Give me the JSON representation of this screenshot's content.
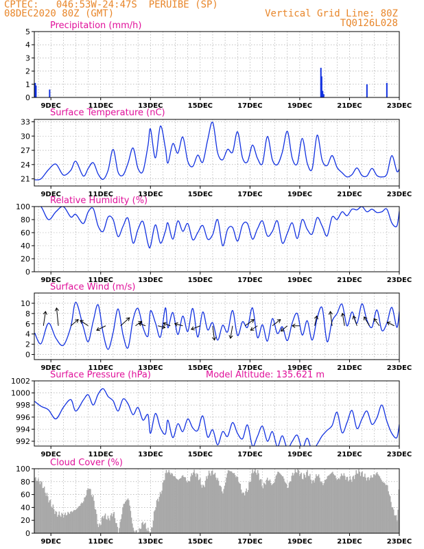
{
  "header": {
    "line1_left": "CPTEC:   046:53W-24:47S  PERUIBE (SP)",
    "line2_left": "08DEC2020 80Z (GMT)",
    "line2_right": "Vertical Grid Line: 80Z",
    "line3_right": "TQ0126L028"
  },
  "colors": {
    "header": "#e8862a",
    "title": "#e0109a",
    "series": "#1030e0",
    "cloud": "#a8a8a8"
  },
  "x_axis": {
    "ticks": [
      "9DEC",
      "11DEC",
      "13DEC",
      "15DEC",
      "17DEC",
      "19DEC",
      "21DEC",
      "23DEC"
    ],
    "range_days": [
      8.333,
      23.0
    ]
  },
  "chart_data": [
    {
      "type": "bar",
      "title": "Precipitation (mm/h)",
      "ylim": [
        0,
        5
      ],
      "yticks": [
        "0",
        "1",
        "2",
        "3",
        "4",
        "5"
      ],
      "x": [
        8.37,
        8.4,
        8.95,
        19.85,
        19.88,
        19.92,
        19.96,
        21.7,
        22.5
      ],
      "values": [
        1.1,
        0.9,
        0.6,
        2.25,
        1.6,
        0.5,
        0.25,
        1.0,
        1.1
      ]
    },
    {
      "type": "line",
      "title": "Surface Temperature (nC)",
      "ylim": [
        19.5,
        33.5
      ],
      "yticks": [
        "21",
        "24",
        "27",
        "30",
        "33"
      ],
      "x": [
        8.35,
        8.6,
        8.9,
        9.2,
        9.5,
        9.8,
        10.0,
        10.3,
        10.5,
        10.7,
        10.9,
        11.1,
        11.3,
        11.5,
        11.7,
        11.9,
        12.1,
        12.3,
        12.5,
        12.7,
        12.9,
        13.0,
        13.2,
        13.4,
        13.6,
        13.7,
        13.9,
        14.1,
        14.3,
        14.5,
        14.7,
        14.9,
        15.1,
        15.3,
        15.5,
        15.7,
        15.9,
        16.1,
        16.3,
        16.5,
        16.7,
        16.9,
        17.1,
        17.3,
        17.5,
        17.7,
        17.9,
        18.1,
        18.3,
        18.5,
        18.7,
        18.9,
        19.1,
        19.3,
        19.5,
        19.7,
        19.9,
        20.1,
        20.3,
        20.5,
        20.7,
        20.9,
        21.1,
        21.3,
        21.5,
        21.7,
        21.9,
        22.1,
        22.3,
        22.5,
        22.7,
        22.9,
        23.0
      ],
      "values": [
        20.8,
        21.0,
        22.9,
        24.1,
        21.8,
        22.8,
        24.7,
        21.6,
        23.2,
        24.4,
        22.0,
        20.9,
        22.8,
        27.2,
        22.4,
        21.8,
        24.3,
        27.5,
        23.2,
        22.6,
        28.0,
        31.5,
        25.4,
        32.1,
        27.5,
        24.3,
        28.4,
        26.4,
        29.8,
        24.7,
        23.6,
        26.0,
        24.5,
        29.2,
        32.9,
        26.5,
        25.0,
        27.2,
        26.6,
        30.9,
        25.4,
        24.6,
        28.1,
        25.3,
        24.2,
        29.9,
        25.0,
        24.0,
        26.6,
        31.0,
        25.3,
        24.2,
        29.5,
        24.3,
        23.1,
        30.2,
        24.9,
        23.8,
        25.9,
        23.4,
        22.3,
        21.4,
        21.9,
        23.3,
        21.7,
        21.6,
        23.2,
        21.7,
        21.4,
        22.0,
        25.9,
        22.6,
        23.1
      ]
    },
    {
      "type": "line",
      "title": "Relative Humidity (%)",
      "ylim": [
        0,
        100
      ],
      "yticks": [
        "0",
        "20",
        "40",
        "60",
        "80",
        "100"
      ],
      "x": [
        8.35,
        8.6,
        8.9,
        9.2,
        9.5,
        9.8,
        10.0,
        10.3,
        10.5,
        10.7,
        10.9,
        11.1,
        11.3,
        11.5,
        11.7,
        11.9,
        12.1,
        12.3,
        12.5,
        12.7,
        12.9,
        13.0,
        13.2,
        13.4,
        13.6,
        13.7,
        13.9,
        14.1,
        14.3,
        14.5,
        14.7,
        14.9,
        15.1,
        15.3,
        15.5,
        15.7,
        15.9,
        16.1,
        16.3,
        16.5,
        16.7,
        16.9,
        17.1,
        17.3,
        17.5,
        17.7,
        17.9,
        18.1,
        18.3,
        18.5,
        18.7,
        18.9,
        19.1,
        19.3,
        19.5,
        19.7,
        19.9,
        20.1,
        20.3,
        20.5,
        20.7,
        20.9,
        21.1,
        21.3,
        21.5,
        21.7,
        21.9,
        22.1,
        22.3,
        22.5,
        22.7,
        22.9,
        23.0
      ],
      "values": [
        100,
        100,
        80,
        92,
        100,
        84,
        88,
        74,
        92,
        97,
        70,
        62,
        84,
        80,
        54,
        70,
        82,
        44,
        65,
        77,
        43,
        39,
        72,
        44,
        62,
        75,
        50,
        78,
        62,
        74,
        49,
        60,
        71,
        50,
        57,
        80,
        40,
        65,
        68,
        47,
        72,
        74,
        50,
        66,
        78,
        55,
        62,
        78,
        44,
        59,
        75,
        51,
        80,
        65,
        58,
        83,
        70,
        55,
        84,
        80,
        92,
        86,
        96,
        95,
        100,
        92,
        96,
        91,
        92,
        96,
        75,
        70,
        93
      ]
    },
    {
      "type": "line",
      "title": "Surface Wind (m/s)",
      "ylim": [
        -1,
        12
      ],
      "yticks": [
        "0",
        "2",
        "4",
        "6",
        "8",
        "10"
      ],
      "x": [
        8.35,
        8.6,
        8.9,
        9.2,
        9.5,
        9.8,
        10.0,
        10.3,
        10.5,
        10.7,
        10.9,
        11.1,
        11.3,
        11.5,
        11.7,
        11.9,
        12.1,
        12.3,
        12.5,
        12.7,
        12.9,
        13.0,
        13.2,
        13.4,
        13.6,
        13.7,
        13.9,
        14.1,
        14.3,
        14.5,
        14.7,
        14.9,
        15.1,
        15.3,
        15.5,
        15.7,
        15.9,
        16.1,
        16.3,
        16.5,
        16.7,
        16.9,
        17.1,
        17.3,
        17.5,
        17.7,
        17.9,
        18.1,
        18.3,
        18.5,
        18.7,
        18.9,
        19.1,
        19.3,
        19.5,
        19.7,
        19.9,
        20.1,
        20.3,
        20.5,
        20.7,
        20.9,
        21.1,
        21.3,
        21.5,
        21.7,
        21.9,
        22.1,
        22.3,
        22.5,
        22.7,
        22.9,
        23.0
      ],
      "values": [
        4.2,
        2.1,
        6.1,
        3.2,
        1.8,
        5.4,
        10.2,
        5.4,
        2.5,
        6.5,
        9.7,
        4.1,
        1.0,
        4.3,
        8.9,
        3.8,
        1.3,
        6.8,
        9.0,
        5.3,
        3.6,
        8.5,
        6.2,
        3.4,
        9.1,
        5.2,
        8.2,
        3.9,
        7.5,
        4.5,
        9.0,
        3.4,
        8.3,
        4.8,
        6.2,
        2.8,
        5.7,
        4.4,
        8.6,
        3.7,
        6.4,
        5.3,
        9.1,
        3.3,
        5.8,
        2.6,
        7.0,
        4.1,
        5.4,
        2.7,
        6.2,
        8.0,
        3.8,
        6.6,
        2.8,
        7.1,
        9.1,
        2.5,
        6.5,
        8.0,
        9.8,
        5.6,
        8.3,
        6.1,
        9.9,
        6.7,
        5.3,
        8.7,
        4.7,
        6.1,
        9.2,
        5.3,
        8.4
      ],
      "vectors": [
        {
          "x": 8.7,
          "dx": 0.12,
          "dy": 0.8
        },
        {
          "x": 9.3,
          "dx": -0.1,
          "dy": 1.0
        },
        {
          "x": 9.8,
          "dx": 0.42,
          "dy": 0.35
        },
        {
          "x": 10.5,
          "dx": -0.45,
          "dy": 0.3
        },
        {
          "x": 11.2,
          "dx": -0.5,
          "dy": -0.25
        },
        {
          "x": 11.8,
          "dx": 0.5,
          "dy": 0.45
        },
        {
          "x": 12.4,
          "dx": 0.35,
          "dy": 0.25
        },
        {
          "x": 12.8,
          "dx": -0.38,
          "dy": 0.15
        },
        {
          "x": 13.3,
          "dx": 0.4,
          "dy": -0.1
        },
        {
          "x": 13.8,
          "dx": -0.4,
          "dy": 0.15
        },
        {
          "x": 14.3,
          "dx": -0.45,
          "dy": 0.12
        },
        {
          "x": 15.0,
          "dx": -0.5,
          "dy": -0.2
        },
        {
          "x": 15.5,
          "dx": 0.1,
          "dy": -0.8
        },
        {
          "x": 16.3,
          "dx": -0.12,
          "dy": -0.7
        },
        {
          "x": 16.8,
          "dx": 0.5,
          "dy": 0.35
        },
        {
          "x": 17.3,
          "dx": -0.38,
          "dy": -0.25
        },
        {
          "x": 17.9,
          "dx": 0.45,
          "dy": 0.35
        },
        {
          "x": 18.5,
          "dx": -0.35,
          "dy": -0.3
        },
        {
          "x": 19.0,
          "dx": -0.42,
          "dy": 0.0
        },
        {
          "x": 19.6,
          "dx": 0.12,
          "dy": 0.55
        },
        {
          "x": 20.3,
          "dx": -0.1,
          "dy": 0.8
        },
        {
          "x": 20.8,
          "dx": -0.12,
          "dy": 0.7
        },
        {
          "x": 21.3,
          "dx": -0.2,
          "dy": 0.55
        },
        {
          "x": 21.8,
          "dx": -0.3,
          "dy": 0.5
        },
        {
          "x": 22.2,
          "dx": -0.3,
          "dy": 0.4
        },
        {
          "x": 22.8,
          "dx": -0.4,
          "dy": 0.2
        }
      ]
    },
    {
      "type": "line",
      "title": "Surface Pressure (hPa)",
      "annotation": "Model Altitude: 135.621  m",
      "ylim": [
        991.2,
        1002
      ],
      "yticks": [
        "992",
        "994",
        "996",
        "998",
        "1000",
        "1002"
      ],
      "x": [
        8.35,
        8.6,
        8.9,
        9.2,
        9.5,
        9.8,
        10.0,
        10.3,
        10.5,
        10.7,
        10.9,
        11.1,
        11.3,
        11.5,
        11.7,
        11.9,
        12.1,
        12.3,
        12.5,
        12.7,
        12.9,
        13.0,
        13.2,
        13.4,
        13.6,
        13.7,
        13.9,
        14.1,
        14.3,
        14.5,
        14.7,
        14.9,
        15.1,
        15.3,
        15.5,
        15.7,
        15.9,
        16.1,
        16.3,
        16.5,
        16.7,
        16.9,
        17.1,
        17.3,
        17.5,
        17.7,
        17.9,
        18.1,
        18.3,
        18.5,
        18.7,
        18.9,
        19.1,
        19.3,
        19.5,
        19.7,
        19.9,
        20.1,
        20.3,
        20.5,
        20.7,
        20.9,
        21.1,
        21.3,
        21.5,
        21.7,
        21.9,
        22.1,
        22.3,
        22.5,
        22.7,
        22.9,
        23.0
      ],
      "values": [
        998.6,
        997.8,
        997.2,
        995.7,
        997.6,
        998.9,
        997.0,
        998.8,
        999.7,
        998.0,
        999.8,
        1000.7,
        999.4,
        998.7,
        997.0,
        999.0,
        998.2,
        996.4,
        997.6,
        995.5,
        996.4,
        993.3,
        996.6,
        994.2,
        993.2,
        995.5,
        992.6,
        994.9,
        993.6,
        995.7,
        994.2,
        993.8,
        996.2,
        992.7,
        993.9,
        991.4,
        993.6,
        992.8,
        995.1,
        993.3,
        992.4,
        994.7,
        991.2,
        992.8,
        994.5,
        992.0,
        993.6,
        991.1,
        992.9,
        990.8,
        992.0,
        993.0,
        990.8,
        992.5,
        990.4,
        991.5,
        992.9,
        993.8,
        994.6,
        996.8,
        993.4,
        995.1,
        997.1,
        994.1,
        995.7,
        997.0,
        994.8,
        995.9,
        998.0,
        995.3,
        993.3,
        992.6,
        994.8
      ]
    },
    {
      "type": "bar",
      "title": "Cloud Cover (%)",
      "ylim": [
        0,
        100
      ],
      "yticks": [
        "0",
        "20",
        "40",
        "60",
        "80",
        "100"
      ],
      "x": [
        8.35,
        8.6,
        8.9,
        9.2,
        9.5,
        9.8,
        10.0,
        10.3,
        10.5,
        10.7,
        10.9,
        11.1,
        11.3,
        11.5,
        11.7,
        11.9,
        12.1,
        12.3,
        12.5,
        12.7,
        12.9,
        13.0,
        13.2,
        13.4,
        13.6,
        13.7,
        13.9,
        14.1,
        14.3,
        14.5,
        14.7,
        14.9,
        15.1,
        15.3,
        15.5,
        15.7,
        15.9,
        16.1,
        16.3,
        16.5,
        16.7,
        16.9,
        17.1,
        17.3,
        17.5,
        17.7,
        17.9,
        18.1,
        18.3,
        18.5,
        18.7,
        18.9,
        19.1,
        19.3,
        19.5,
        19.7,
        19.9,
        20.1,
        20.3,
        20.5,
        20.7,
        20.9,
        21.1,
        21.3,
        21.5,
        21.7,
        21.9,
        22.1,
        22.3,
        22.5,
        22.7,
        22.9,
        23.0
      ],
      "values": [
        85,
        78,
        52,
        30,
        28,
        33,
        37,
        50,
        72,
        53,
        8,
        28,
        22,
        32,
        2,
        45,
        55,
        4,
        2,
        18,
        3,
        0,
        45,
        62,
        95,
        96,
        90,
        82,
        90,
        78,
        96,
        88,
        70,
        92,
        95,
        82,
        62,
        98,
        94,
        85,
        60,
        68,
        98,
        94,
        72,
        85,
        74,
        96,
        88,
        70,
        92,
        98,
        86,
        95,
        78,
        92,
        75,
        88,
        95,
        82,
        92,
        84,
        84,
        96,
        92,
        84,
        88,
        94,
        80,
        74,
        40,
        20,
        90
      ]
    }
  ]
}
